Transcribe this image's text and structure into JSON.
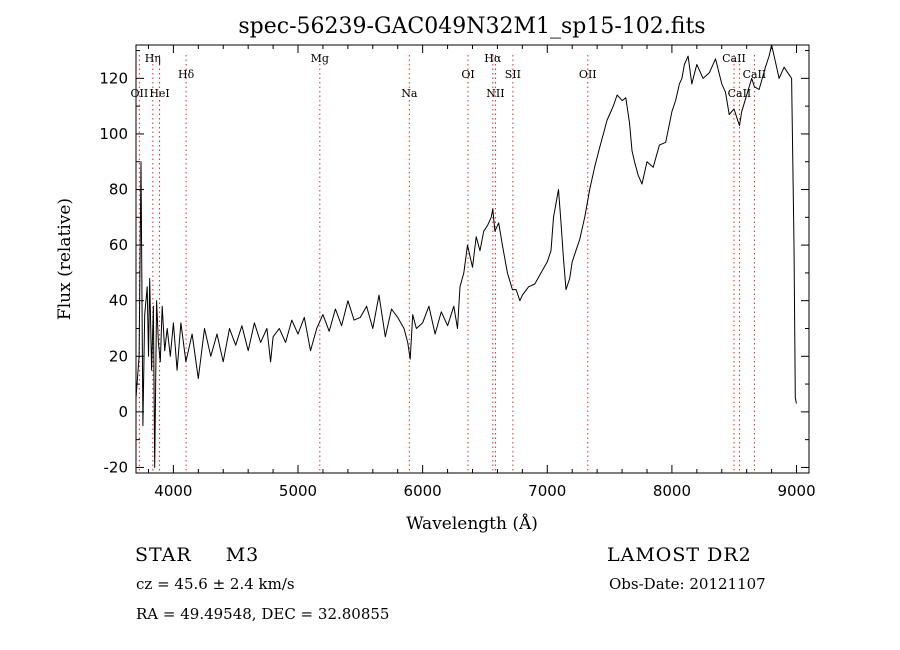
{
  "chart_data": {
    "type": "line",
    "title": "spec-56239-GAC049N32M1_sp15-102.fits",
    "xlabel": "Wavelength (Å)",
    "ylabel": "Flux (relative)",
    "xlim": [
      3700,
      9100
    ],
    "ylim": [
      -22,
      132
    ],
    "xticks": [
      4000,
      5000,
      6000,
      7000,
      8000,
      9000
    ],
    "yticks": [
      -20,
      0,
      20,
      40,
      60,
      80,
      100,
      120
    ],
    "grid": false,
    "series": [
      {
        "color": "#000000",
        "x": [
          3700,
          3725,
          3740,
          3755,
          3770,
          3790,
          3800,
          3810,
          3825,
          3840,
          3850,
          3865,
          3880,
          3895,
          3910,
          3930,
          3950,
          3975,
          4000,
          4030,
          4060,
          4100,
          4150,
          4200,
          4250,
          4300,
          4350,
          4400,
          4450,
          4500,
          4550,
          4600,
          4650,
          4700,
          4750,
          4780,
          4800,
          4850,
          4900,
          4950,
          5000,
          5050,
          5100,
          5150,
          5200,
          5250,
          5300,
          5350,
          5400,
          5450,
          5500,
          5550,
          5600,
          5650,
          5700,
          5750,
          5800,
          5850,
          5880,
          5900,
          5920,
          5950,
          6000,
          6050,
          6100,
          6150,
          6200,
          6250,
          6280,
          6300,
          6330,
          6360,
          6400,
          6430,
          6460,
          6490,
          6520,
          6550,
          6563,
          6580,
          6610,
          6640,
          6680,
          6700,
          6720,
          6750,
          6780,
          6800,
          6850,
          6900,
          6950,
          7000,
          7030,
          7050,
          7070,
          7090,
          7110,
          7130,
          7150,
          7180,
          7200,
          7230,
          7260,
          7300,
          7340,
          7380,
          7420,
          7450,
          7480,
          7500,
          7530,
          7560,
          7600,
          7630,
          7660,
          7680,
          7700,
          7730,
          7760,
          7800,
          7850,
          7900,
          7950,
          8000,
          8030,
          8060,
          8080,
          8100,
          8130,
          8160,
          8200,
          8250,
          8300,
          8350,
          8400,
          8430,
          8460,
          8498,
          8520,
          8542,
          8560,
          8600,
          8640,
          8662,
          8700,
          8750,
          8780,
          8800,
          8830,
          8860,
          8900,
          8930,
          8960,
          8980,
          8990,
          9000
        ],
        "values": [
          5,
          20,
          90,
          -5,
          35,
          45,
          20,
          48,
          15,
          38,
          -20,
          40,
          25,
          18,
          38,
          22,
          30,
          20,
          32,
          15,
          32,
          18,
          28,
          12,
          30,
          20,
          28,
          18,
          30,
          24,
          31,
          22,
          32,
          25,
          30,
          18,
          27,
          30,
          25,
          33,
          28,
          34,
          22,
          30,
          35,
          29,
          37,
          31,
          40,
          33,
          34,
          38,
          30,
          42,
          27,
          37,
          34,
          30,
          25,
          19,
          35,
          30,
          32,
          38,
          28,
          36,
          31,
          38,
          30,
          45,
          50,
          60,
          52,
          63,
          58,
          65,
          67,
          70,
          73,
          65,
          68,
          60,
          50,
          47,
          44,
          44,
          40,
          42,
          45,
          46,
          50,
          54,
          58,
          70,
          75,
          80,
          68,
          55,
          44,
          48,
          54,
          58,
          62,
          70,
          80,
          88,
          95,
          100,
          105,
          107,
          110,
          114,
          112,
          113,
          104,
          94,
          90,
          85,
          82,
          90,
          88,
          96,
          97,
          108,
          112,
          118,
          120,
          125,
          128,
          118,
          125,
          120,
          122,
          127,
          118,
          115,
          107,
          109,
          106,
          103,
          108,
          114,
          120,
          117,
          116,
          124,
          128,
          132,
          126,
          120,
          124,
          122,
          120,
          60,
          5,
          3
        ]
      }
    ],
    "annotations": [
      {
        "label": "Hη",
        "x": 3835,
        "row": "upper"
      },
      {
        "label": "OII",
        "x": 3727,
        "row": "lower"
      },
      {
        "label": "HeI",
        "x": 3889,
        "row": "lower"
      },
      {
        "label": "Hδ",
        "x": 4102,
        "row": "middle"
      },
      {
        "label": "Mg",
        "x": 5175,
        "row": "upper"
      },
      {
        "label": "Na",
        "x": 5893,
        "row": "lower"
      },
      {
        "label": "OI",
        "x": 6364,
        "row": "middle"
      },
      {
        "label": "Hα",
        "x": 6563,
        "row": "upper"
      },
      {
        "label": "NII",
        "x": 6584,
        "row": "lower"
      },
      {
        "label": "SII",
        "x": 6724,
        "row": "middle"
      },
      {
        "label": "OII",
        "x": 7325,
        "row": "middle"
      },
      {
        "label": "CaII",
        "x": 8498,
        "row": "upper"
      },
      {
        "label": "CaII",
        "x": 8542,
        "row": "lower"
      },
      {
        "label": "CaII",
        "x": 8662,
        "row": "middle"
      }
    ]
  },
  "info": {
    "object_class": "STAR",
    "subclass": "M3",
    "survey": "LAMOST DR2",
    "redshift": "cz = 45.6 ± 2.4 km/s",
    "obs_date": "Obs-Date: 20121107",
    "coords": "RA =  49.49548, DEC =  32.80855"
  }
}
